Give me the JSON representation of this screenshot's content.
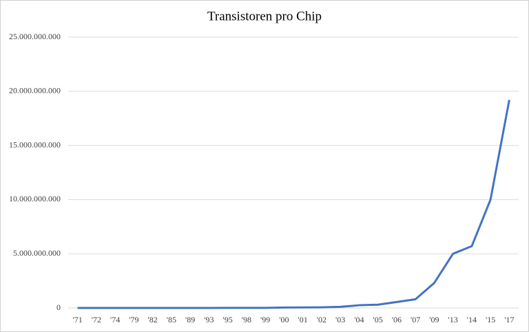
{
  "chart_data": {
    "type": "line",
    "title": "Transistoren pro Chip",
    "categories": [
      "'71",
      "'72",
      "'74",
      "'79",
      "'82",
      "'85",
      "'89",
      "'93",
      "'95",
      "'98",
      "'99",
      "'00",
      "'01",
      "'02",
      "'03",
      "'04",
      "'05",
      "'06",
      "'07",
      "'09",
      "'13",
      "'14",
      "'15",
      "'17"
    ],
    "series": [
      {
        "name": "Transistoren pro Chip",
        "color": "#4472c4",
        "values": [
          2300,
          3500,
          6000,
          29000,
          134000,
          275000,
          1200000,
          3100000,
          5500000,
          7500000,
          9500000,
          42000000,
          45000000,
          55000000,
          100000000,
          250000000,
          300000000,
          550000000,
          800000000,
          2300000000,
          5000000000,
          5700000000,
          10000000000,
          19200000000
        ]
      }
    ],
    "ylim": [
      0,
      25000000000
    ],
    "yticks": [
      0,
      {
        "value": 5000000000,
        "label": "5.000.000.000"
      },
      {
        "value": 10000000000,
        "label": "10.000.000.000"
      },
      {
        "value": 15000000000,
        "label": "15.000.000.000"
      },
      {
        "value": 20000000000,
        "label": "20.000.000.000"
      },
      {
        "value": 25000000000,
        "label": "25.000.000.000"
      }
    ],
    "grid": true
  }
}
